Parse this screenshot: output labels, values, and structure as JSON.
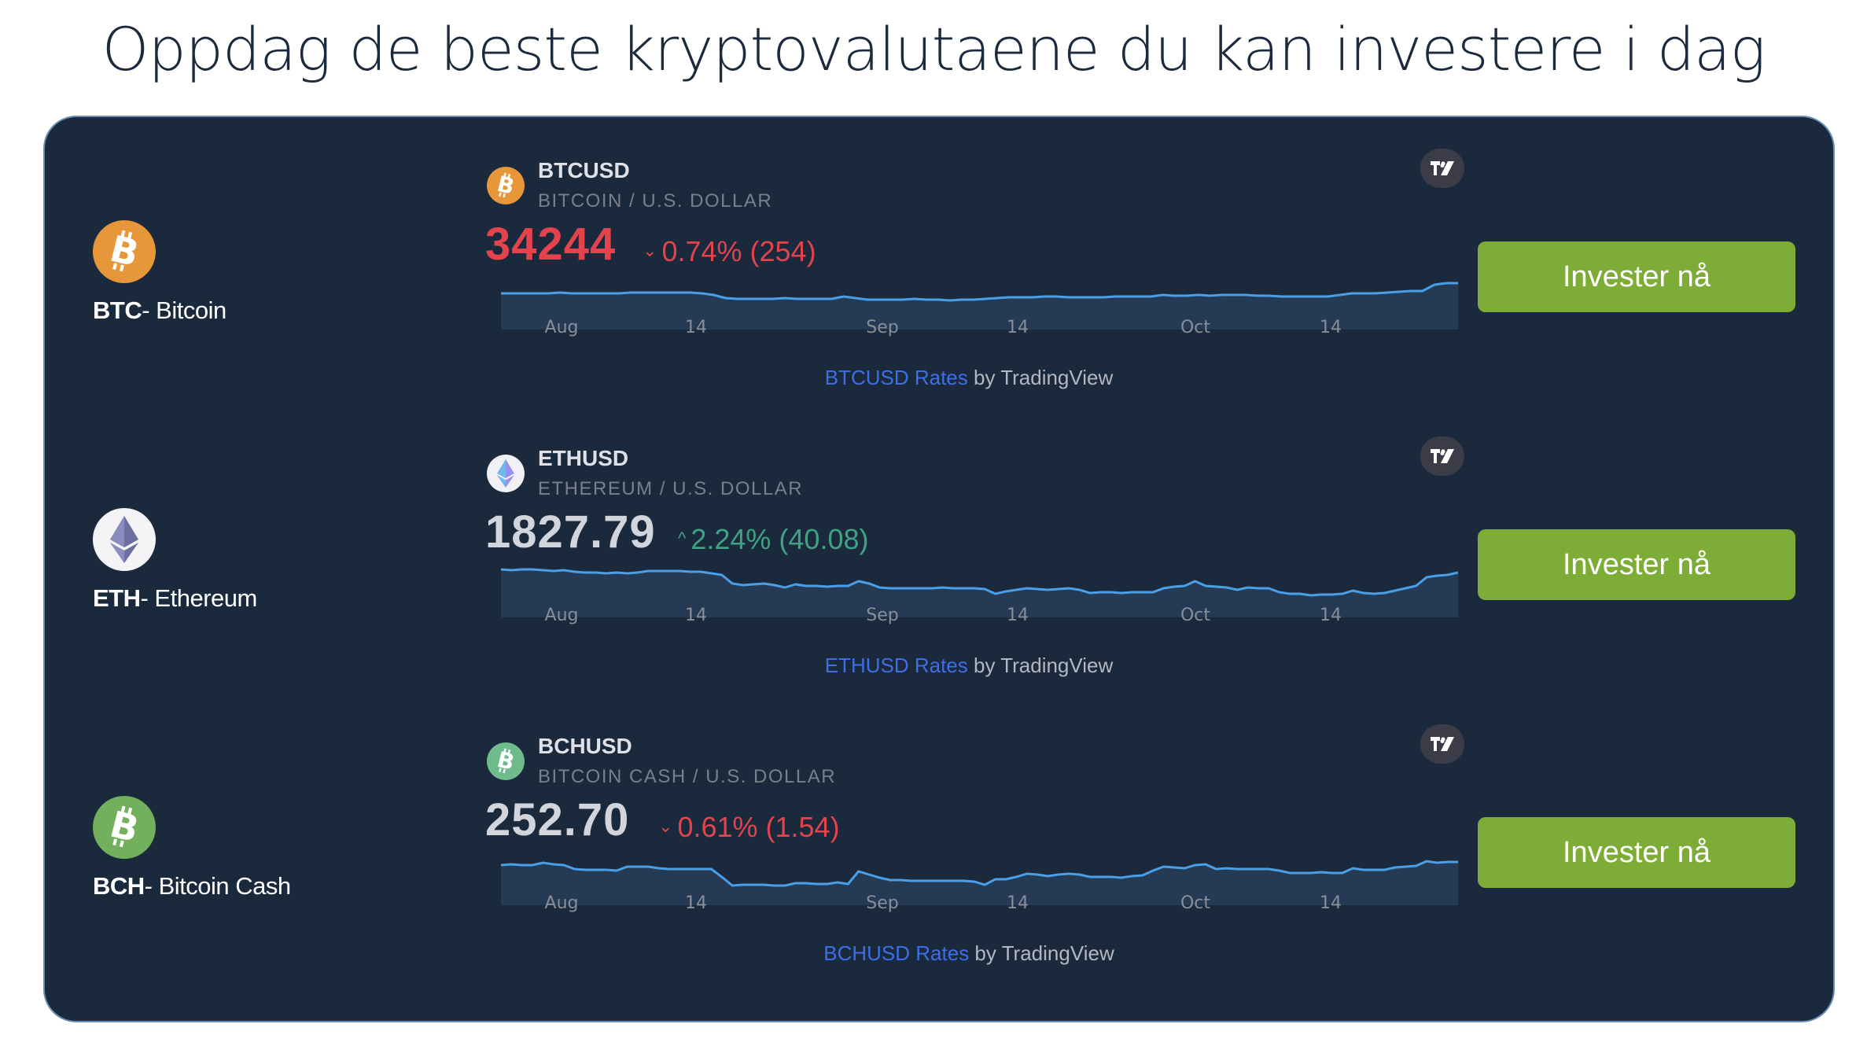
{
  "page": {
    "title": "Oppdag de beste kryptovalutaene du kan investere i dag"
  },
  "colors": {
    "panel_bg": "#1b293d",
    "panel_border": "#6a8db6",
    "button_bg": "#7dad36",
    "down": "#e2434c",
    "up": "#3fa283",
    "line": "#4b9fe6",
    "area": "#243a55",
    "link": "#3d6ee8"
  },
  "coins": [
    {
      "ticker": "BTC",
      "name": "- Bitcoin",
      "icon": "bitcoin-icon",
      "icon_color": "#e8963a",
      "widget": {
        "symbol": "BTCUSD",
        "description": "BITCOIN / U.S. DOLLAR",
        "price": "34244",
        "direction": "down",
        "change_arrow": "⌄",
        "change": "0.74% (254)",
        "axis_labels": [
          "Aug",
          "14",
          "Sep",
          "14",
          "Oct",
          "14"
        ],
        "credits_link": "BTCUSD Rates",
        "credits_suffix": " by TradingView"
      },
      "button_label": "Invester nå"
    },
    {
      "ticker": "ETH",
      "name": "- Ethereum",
      "icon": "ethereum-icon",
      "icon_color": "#f4f4f6",
      "widget": {
        "symbol": "ETHUSD",
        "description": "ETHEREUM / U.S. DOLLAR",
        "price": "1827.79",
        "direction": "up",
        "change_arrow": "^",
        "change": "2.24% (40.08)",
        "axis_labels": [
          "Aug",
          "14",
          "Sep",
          "14",
          "Oct",
          "14"
        ],
        "credits_link": "ETHUSD Rates",
        "credits_suffix": " by TradingView"
      },
      "button_label": "Invester nå"
    },
    {
      "ticker": "BCH",
      "name": "- Bitcoin Cash",
      "icon": "bitcoin-cash-icon",
      "icon_color": "#72b05c",
      "widget": {
        "symbol": "BCHUSD",
        "description": "BITCOIN CASH / U.S. DOLLAR",
        "price": "252.70",
        "direction": "down",
        "change_arrow": "⌄",
        "change": "0.61% (1.54)",
        "axis_labels": [
          "Aug",
          "14",
          "Sep",
          "14",
          "Oct",
          "14"
        ],
        "credits_link": "BCHUSD Rates",
        "credits_suffix": " by TradingView"
      },
      "button_label": "Invester nå"
    }
  ],
  "chart_data": [
    {
      "type": "area",
      "title": "BTCUSD",
      "x_ticks": [
        "Aug",
        "14",
        "Sep",
        "14",
        "Oct",
        "14"
      ],
      "values": [
        46,
        46,
        46,
        46,
        46,
        47,
        46,
        46,
        46,
        46,
        46,
        47,
        47,
        47,
        47,
        47,
        47,
        46,
        44,
        40,
        39,
        39,
        39,
        39,
        40,
        39,
        39,
        39,
        39,
        42,
        40,
        38,
        38,
        38,
        38,
        39,
        38,
        38,
        37,
        38,
        38,
        39,
        40,
        41,
        41,
        41,
        42,
        42,
        41,
        41,
        41,
        41,
        42,
        42,
        42,
        42,
        44,
        43,
        43,
        44,
        43,
        44,
        44,
        44,
        43,
        43,
        42,
        42,
        42,
        42,
        42,
        44,
        46,
        46,
        46,
        47,
        48,
        49,
        49,
        57,
        59,
        59
      ]
    },
    {
      "type": "area",
      "title": "ETHUSD",
      "x_ticks": [
        "Aug",
        "14",
        "Sep",
        "14",
        "Oct",
        "14"
      ],
      "values": [
        61,
        60,
        61,
        61,
        60,
        59,
        60,
        58,
        57,
        57,
        56,
        57,
        56,
        57,
        59,
        59,
        59,
        59,
        58,
        58,
        56,
        54,
        43,
        41,
        42,
        43,
        41,
        38,
        42,
        40,
        40,
        39,
        40,
        40,
        46,
        43,
        38,
        37,
        37,
        37,
        37,
        37,
        38,
        37,
        37,
        37,
        36,
        30,
        33,
        35,
        37,
        36,
        35,
        36,
        37,
        35,
        31,
        32,
        32,
        31,
        32,
        32,
        32,
        37,
        39,
        40,
        46,
        40,
        39,
        38,
        35,
        38,
        37,
        37,
        32,
        30,
        30,
        28,
        29,
        29,
        30,
        34,
        31,
        30,
        31,
        34,
        37,
        40,
        51,
        53,
        54,
        57
      ]
    },
    {
      "type": "area",
      "title": "BCHUSD",
      "x_ticks": [
        "Aug",
        "14",
        "Sep",
        "14",
        "Oct",
        "14"
      ],
      "values": [
        51,
        52,
        51,
        51,
        54,
        52,
        51,
        46,
        45,
        45,
        45,
        44,
        49,
        49,
        49,
        47,
        46,
        46,
        46,
        46,
        46,
        36,
        25,
        26,
        26,
        26,
        25,
        25,
        28,
        28,
        27,
        27,
        29,
        27,
        43,
        39,
        35,
        32,
        32,
        31,
        31,
        31,
        31,
        31,
        31,
        30,
        26,
        33,
        33,
        36,
        40,
        39,
        37,
        39,
        40,
        39,
        36,
        36,
        36,
        35,
        37,
        38,
        44,
        49,
        48,
        47,
        51,
        52,
        46,
        47,
        46,
        46,
        46,
        46,
        44,
        41,
        41,
        41,
        42,
        41,
        41,
        47,
        45,
        45,
        45,
        48,
        49,
        50,
        56,
        54,
        55,
        55
      ]
    }
  ]
}
